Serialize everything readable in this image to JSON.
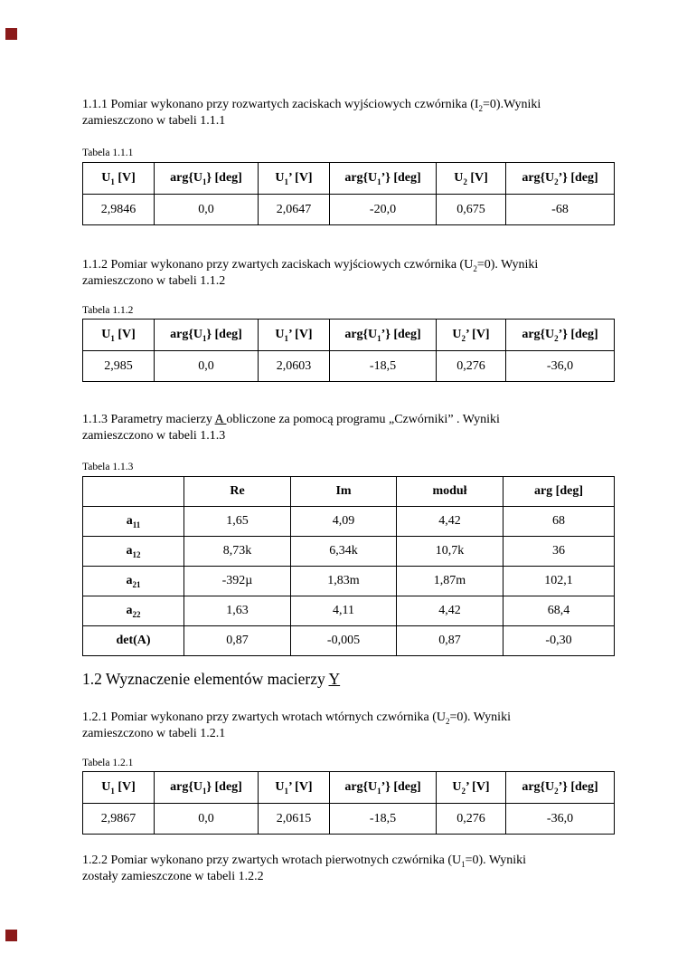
{
  "markers": {
    "color": "#8b1a1a"
  },
  "paragraphs": {
    "p111": {
      "segments": [
        {
          "t": "1.1.1 Pomiar wykonano przy rozwartych zaciskach wyjściowych czwórnika (I"
        },
        {
          "sub": "2"
        },
        {
          "t": "=0).Wyniki"
        },
        {
          "br": true
        },
        {
          "t": "zamieszczono w tabeli 1.1.1"
        }
      ]
    },
    "p112": {
      "segments": [
        {
          "t": "1.1.2 Pomiar wykonano przy zwartych zaciskach wyjściowych czwórnika (U"
        },
        {
          "sub": "2"
        },
        {
          "t": "=0). Wyniki"
        },
        {
          "br": true
        },
        {
          "t": "zamieszczono w tabeli 1.1.2"
        }
      ]
    },
    "p113": {
      "segments": [
        {
          "t": "1.1.3 Parametry macierzy "
        },
        {
          "u": "A "
        },
        {
          "t": "obliczone za pomocą programu „Czwórniki” . Wyniki"
        },
        {
          "br": true
        },
        {
          "t": "zamieszczono w tabeli 1.1.3"
        }
      ]
    },
    "h12": {
      "segments": [
        {
          "t": "1.2 Wyznaczenie elementów macierzy "
        },
        {
          "u": "Y"
        }
      ]
    },
    "p121": {
      "segments": [
        {
          "t": "1.2.1 Pomiar wykonano przy zwartych wrotach wtórnych czwórnika (U"
        },
        {
          "sub": "2"
        },
        {
          "t": "=0). Wyniki"
        },
        {
          "br": true
        },
        {
          "t": "zamieszczono w tabeli 1.2.1"
        }
      ]
    },
    "p122": {
      "segments": [
        {
          "t": "1.2.2 Pomiar wykonano przy zwartych wrotach pierwotnych czwórnika (U"
        },
        {
          "sub": "1"
        },
        {
          "t": "=0). Wyniki"
        },
        {
          "br": true
        },
        {
          "t": "zostały zamieszczone w tabeli 1.2.2"
        }
      ]
    }
  },
  "tables": {
    "t111": {
      "label": "Tabela 1.1.1",
      "headers": [
        [
          {
            "t": "U"
          },
          {
            "sub": "1"
          },
          {
            "t": " [V]"
          }
        ],
        [
          {
            "t": "arg{U"
          },
          {
            "sub": "1"
          },
          {
            "t": "} [deg]"
          }
        ],
        [
          {
            "t": "U"
          },
          {
            "sub": "1"
          },
          {
            "t": "’ [V]"
          }
        ],
        [
          {
            "t": "arg{U"
          },
          {
            "sub": "1"
          },
          {
            "t": "’} [deg]"
          }
        ],
        [
          {
            "t": "U"
          },
          {
            "sub": "2"
          },
          {
            "t": " [V]"
          }
        ],
        [
          {
            "t": "arg{U"
          },
          {
            "sub": "2"
          },
          {
            "t": "’} [deg]"
          }
        ]
      ],
      "values": [
        "2,9846",
        "0,0",
        "2,0647",
        "-20,0",
        "0,675",
        "-68"
      ]
    },
    "t112": {
      "label": "Tabela 1.1.2",
      "headers": [
        [
          {
            "t": "U"
          },
          {
            "sub": "1"
          },
          {
            "t": " [V]"
          }
        ],
        [
          {
            "t": "arg{U"
          },
          {
            "sub": "1"
          },
          {
            "t": "} [deg]"
          }
        ],
        [
          {
            "t": "U"
          },
          {
            "sub": "1"
          },
          {
            "t": "’ [V]"
          }
        ],
        [
          {
            "t": "arg{U"
          },
          {
            "sub": "1"
          },
          {
            "t": "’} [deg]"
          }
        ],
        [
          {
            "t": "U"
          },
          {
            "sub": "2"
          },
          {
            "t": "’ [V]"
          }
        ],
        [
          {
            "t": "arg{U"
          },
          {
            "sub": "2"
          },
          {
            "t": "’} [deg]"
          }
        ]
      ],
      "values": [
        "2,985",
        "0,0",
        "2,0603",
        "-18,5",
        "0,276",
        "-36,0"
      ]
    },
    "t113": {
      "label": "Tabela 1.1.3",
      "col_headers": [
        "",
        "Re",
        "Im",
        "moduł",
        "arg [deg]"
      ],
      "rows": [
        {
          "label": [
            {
              "t": "a"
            },
            {
              "sub": "11"
            }
          ],
          "values": [
            "1,65",
            "4,09",
            "4,42",
            "68"
          ]
        },
        {
          "label": [
            {
              "t": "a"
            },
            {
              "sub": "12"
            }
          ],
          "values": [
            "8,73k",
            "6,34k",
            "10,7k",
            "36"
          ]
        },
        {
          "label": [
            {
              "t": "a"
            },
            {
              "sub": "21"
            }
          ],
          "values": [
            "-392µ",
            "1,83m",
            "1,87m",
            "102,1"
          ]
        },
        {
          "label": [
            {
              "t": "a"
            },
            {
              "sub": "22"
            }
          ],
          "values": [
            "1,63",
            "4,11",
            "4,42",
            "68,4"
          ]
        },
        {
          "label": [
            {
              "t": "det(A)"
            }
          ],
          "values": [
            "0,87",
            "-0,005",
            "0,87",
            "-0,30"
          ]
        }
      ]
    },
    "t121": {
      "label": "Tabela 1.2.1",
      "headers": [
        [
          {
            "t": "U"
          },
          {
            "sub": "1"
          },
          {
            "t": " [V]"
          }
        ],
        [
          {
            "t": "arg{U"
          },
          {
            "sub": "1"
          },
          {
            "t": "} [deg]"
          }
        ],
        [
          {
            "t": "U"
          },
          {
            "sub": "1"
          },
          {
            "t": "’ [V]"
          }
        ],
        [
          {
            "t": "arg{U"
          },
          {
            "sub": "1"
          },
          {
            "t": "’} [deg]"
          }
        ],
        [
          {
            "t": "U"
          },
          {
            "sub": "2"
          },
          {
            "t": "’ [V]"
          }
        ],
        [
          {
            "t": "arg{U"
          },
          {
            "sub": "2"
          },
          {
            "t": "’} [deg]"
          }
        ]
      ],
      "values": [
        "2,9867",
        "0,0",
        "2,0615",
        "-18,5",
        "0,276",
        "-36,0"
      ]
    }
  }
}
